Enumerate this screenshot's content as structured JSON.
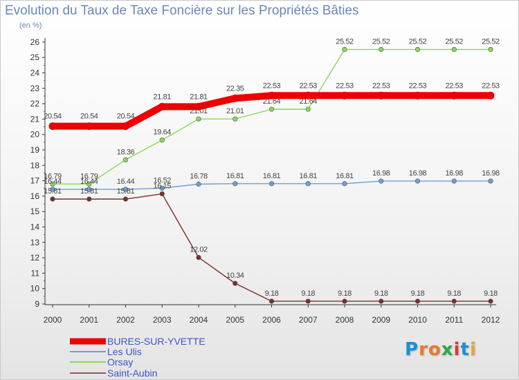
{
  "chart_data": {
    "type": "line",
    "title": "Evolution du Taux de Taxe Foncière sur les Propriétés Bâties",
    "ylabel": "(en %)",
    "xlabel": "",
    "ylim": [
      9,
      26
    ],
    "yticks": [
      "9",
      "10",
      "11",
      "12",
      "13",
      "14",
      "15",
      "16",
      "17",
      "18",
      "19",
      "20",
      "21",
      "22",
      "23",
      "24",
      "25",
      "26"
    ],
    "categories": [
      "2000",
      "2001",
      "2002",
      "2003",
      "2004",
      "2005",
      "2006",
      "2007",
      "2008",
      "2009",
      "2010",
      "2011",
      "2012"
    ],
    "series": [
      {
        "name": "BURES-SUR-YVETTE",
        "color": "#ee0000",
        "values": [
          20.54,
          20.54,
          20.54,
          21.81,
          21.81,
          22.35,
          22.53,
          22.53,
          22.53,
          22.53,
          22.53,
          22.53,
          22.53
        ],
        "labels": [
          "20.54",
          "20.54",
          "20.54",
          "21.81",
          "21.81",
          "22.35",
          "22.53",
          "22.53",
          "22.53",
          "22.53",
          "22.53",
          "22.53",
          "22.53"
        ]
      },
      {
        "name": "Les Ulis",
        "color": "#6f9fcf",
        "values": [
          16.44,
          16.44,
          16.44,
          16.52,
          16.78,
          16.81,
          16.81,
          16.81,
          16.81,
          16.98,
          16.98,
          16.98,
          16.98
        ],
        "labels": [
          "16.44",
          "16.44",
          "16.44",
          "16.52",
          "16.78",
          "16.81",
          "16.81",
          "16.81",
          "16.81",
          "16.98",
          "16.98",
          "16.98",
          "16.98"
        ]
      },
      {
        "name": "Orsay",
        "color": "#88d855",
        "values": [
          16.79,
          16.79,
          18.36,
          19.64,
          21.01,
          21.01,
          21.64,
          21.64,
          25.52,
          25.52,
          25.52,
          25.52,
          25.52
        ],
        "labels": [
          "16.79",
          "16.79",
          "18.36",
          "19.64",
          "21.01",
          "21.01",
          "21.64",
          "21.64",
          "25.52",
          "25.52",
          "25.52",
          "25.52",
          "25.52"
        ]
      },
      {
        "name": "Saint-Aubin",
        "color": "#7a2e2e",
        "values": [
          15.81,
          15.81,
          15.81,
          16.15,
          12.02,
          10.34,
          9.18,
          9.18,
          9.18,
          9.18,
          9.18,
          9.18,
          9.18
        ],
        "labels": [
          "15.81",
          "15.81",
          "15.81",
          "16.15",
          "12.02",
          "10.34",
          "9.18",
          "9.18",
          "9.18",
          "9.18",
          "9.18",
          "9.18",
          "9.18"
        ]
      }
    ],
    "legend_position": "bottom-left",
    "grid": false
  },
  "legend": {
    "items": [
      "BURES-SUR-YVETTE",
      "Les Ulis",
      "Orsay",
      "Saint-Aubin"
    ]
  },
  "logo": {
    "text": "Proxiti",
    "letters": [
      "P",
      "r",
      "o",
      "x",
      "i",
      "t",
      "i"
    ],
    "colors": [
      "#1a8fd6",
      "#e8792a",
      "#e8792a",
      "#2ea84a",
      "#d83a3a",
      "#1a8fd6",
      "#e8a82a"
    ]
  }
}
